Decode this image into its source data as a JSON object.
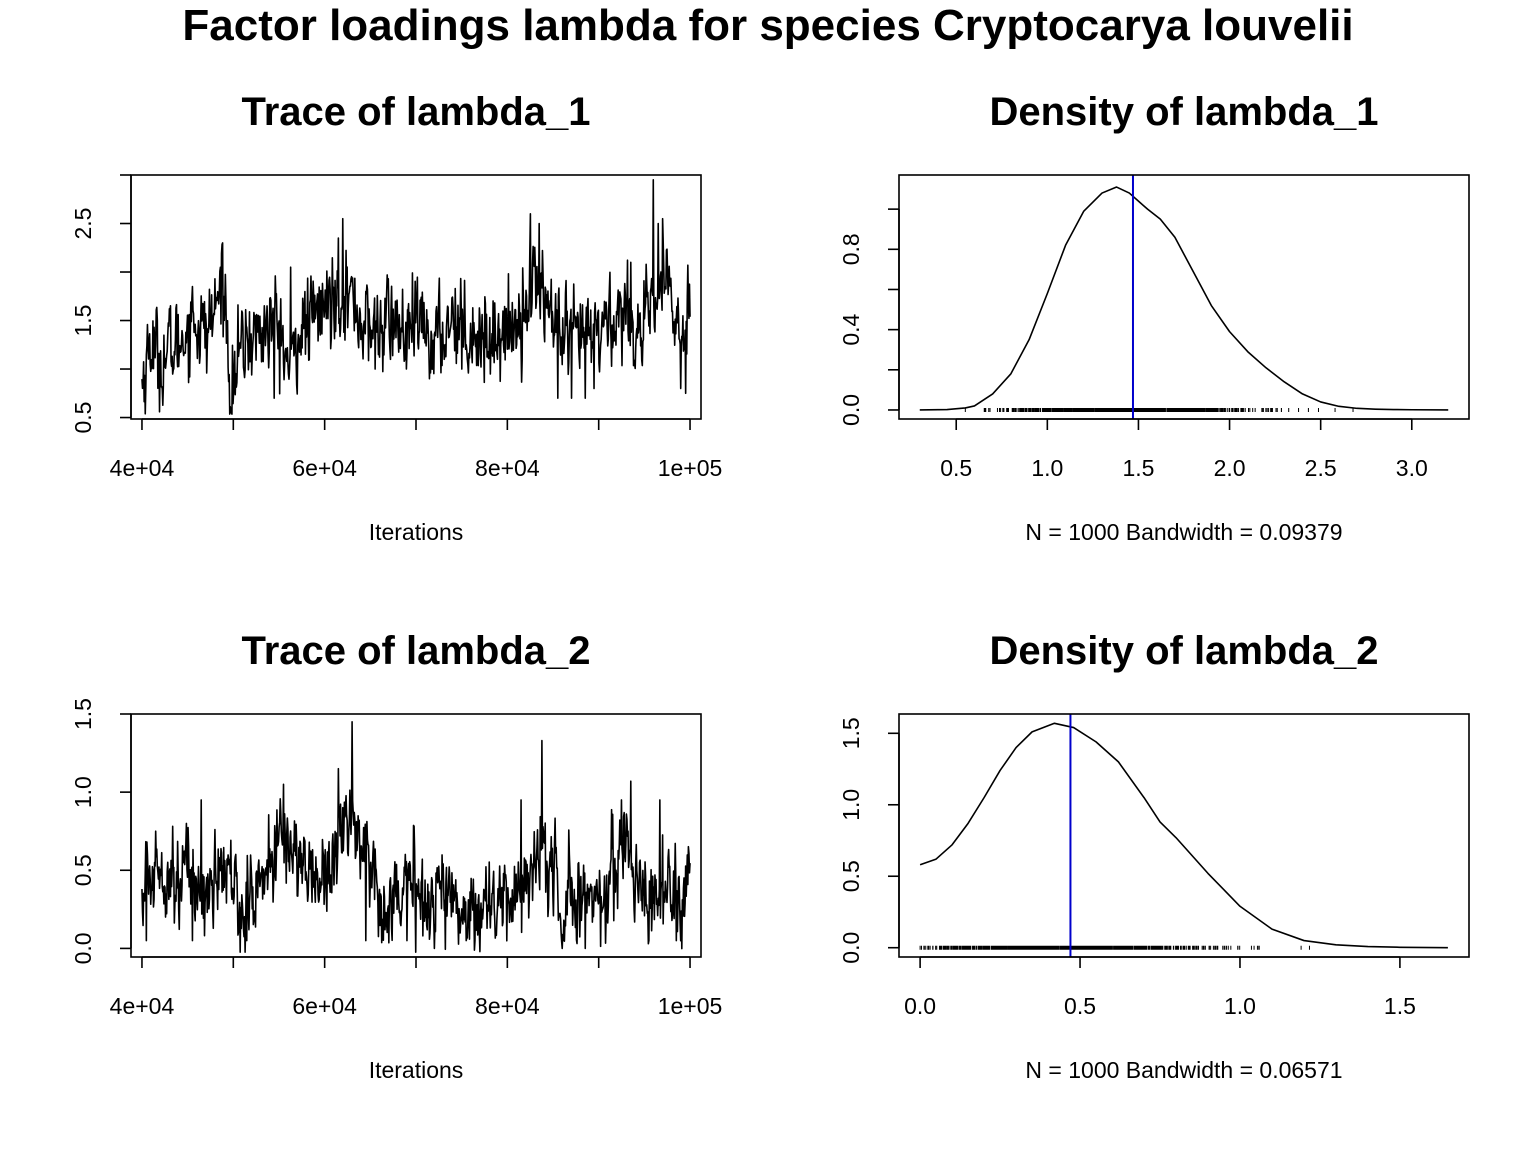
{
  "figure": {
    "title": "Factor loadings lambda for species  Cryptocarya louvelii"
  },
  "chart_data": [
    {
      "id": "trace1",
      "type": "line",
      "title": "Trace of lambda_1",
      "xlabel": "Iterations",
      "ylabel": "",
      "xlim": [
        38800,
        101200
      ],
      "ylim": [
        0.485,
        3.0
      ],
      "xticks": [
        40000,
        50000,
        60000,
        70000,
        80000,
        90000,
        100000
      ],
      "xtick_labels": [
        "4e+04",
        "",
        "6e+04",
        "",
        "8e+04",
        "",
        "1e+05"
      ],
      "yticks": [
        0.5,
        1.0,
        1.5,
        2.0,
        2.5,
        3.0
      ],
      "ytick_labels": [
        "0.5",
        "",
        "1.5",
        "",
        "2.5",
        ""
      ],
      "x_start": 40000,
      "x_end": 100000,
      "n": 1000,
      "series": [
        {
          "color": "#000000",
          "keyframes": [
            [
              40000,
              0.85
            ],
            [
              41000,
              1.3
            ],
            [
              42000,
              1.05
            ],
            [
              43000,
              1.2
            ],
            [
              44000,
              1.25
            ],
            [
              45000,
              1.45
            ],
            [
              46000,
              1.5
            ],
            [
              47000,
              1.35
            ],
            [
              48000,
              1.6
            ],
            [
              48900,
              1.95
            ],
            [
              49800,
              0.75
            ],
            [
              50500,
              1.1
            ],
            [
              51500,
              1.3
            ],
            [
              52500,
              1.35
            ],
            [
              53500,
              1.4
            ],
            [
              54500,
              1.5
            ],
            [
              55500,
              1.25
            ],
            [
              56300,
              0.9
            ],
            [
              57000,
              1.35
            ],
            [
              58000,
              1.45
            ],
            [
              59000,
              1.55
            ],
            [
              60000,
              1.65
            ],
            [
              61000,
              1.75
            ],
            [
              62000,
              1.85
            ],
            [
              63000,
              1.7
            ],
            [
              64000,
              1.5
            ],
            [
              65000,
              1.4
            ],
            [
              66000,
              1.45
            ],
            [
              67000,
              1.5
            ],
            [
              68000,
              1.45
            ],
            [
              69000,
              1.3
            ],
            [
              70000,
              1.45
            ],
            [
              71000,
              1.4
            ],
            [
              72000,
              1.3
            ],
            [
              73000,
              1.35
            ],
            [
              74000,
              1.6
            ],
            [
              75000,
              1.45
            ],
            [
              76000,
              1.4
            ],
            [
              77000,
              1.35
            ],
            [
              78000,
              1.3
            ],
            [
              79000,
              1.4
            ],
            [
              80000,
              1.35
            ],
            [
              81000,
              1.5
            ],
            [
              82000,
              1.7
            ],
            [
              83000,
              1.9
            ],
            [
              84000,
              1.8
            ],
            [
              85000,
              1.5
            ],
            [
              86000,
              1.3
            ],
            [
              87000,
              1.25
            ],
            [
              88000,
              1.35
            ],
            [
              89000,
              1.3
            ],
            [
              90000,
              1.4
            ],
            [
              91000,
              1.5
            ],
            [
              92000,
              1.55
            ],
            [
              93000,
              1.6
            ],
            [
              94000,
              1.45
            ],
            [
              95000,
              1.35
            ],
            [
              96000,
              1.6
            ],
            [
              97000,
              1.9
            ],
            [
              98000,
              1.7
            ],
            [
              99000,
              1.25
            ],
            [
              100000,
              1.8
            ]
          ],
          "spikes": [
            [
              45500,
              1.85
            ],
            [
              48800,
              2.3
            ],
            [
              49800,
              0.55
            ],
            [
              54500,
              0.7
            ],
            [
              56300,
              2.05
            ],
            [
              61500,
              2.35
            ],
            [
              62000,
              2.55
            ],
            [
              65500,
              1.0
            ],
            [
              71500,
              0.9
            ],
            [
              75000,
              1.0
            ],
            [
              82500,
              2.6
            ],
            [
              83500,
              2.5
            ],
            [
              85500,
              0.7
            ],
            [
              87000,
              0.7
            ],
            [
              88500,
              0.7
            ],
            [
              89500,
              0.8
            ],
            [
              93500,
              2.1
            ],
            [
              96000,
              2.95
            ],
            [
              96500,
              2.5
            ],
            [
              97000,
              2.55
            ],
            [
              99000,
              0.8
            ],
            [
              99500,
              0.75
            ]
          ]
        }
      ]
    },
    {
      "id": "density1",
      "type": "line",
      "title": "Density of lambda_1",
      "xlabel": "N = 1000   Bandwidth = 0.09379",
      "ylabel": "",
      "xlim": [
        0.186,
        3.314
      ],
      "ylim": [
        -0.045,
        1.17
      ],
      "xticks": [
        0.5,
        1.0,
        1.5,
        2.0,
        2.5,
        3.0
      ],
      "xtick_labels": [
        "0.5",
        "1.0",
        "1.5",
        "2.0",
        "2.5",
        "3.0"
      ],
      "yticks": [
        0.0,
        0.2,
        0.4,
        0.6,
        0.8,
        1.0
      ],
      "ytick_labels": [
        "0.0",
        "",
        "0.4",
        "",
        "0.8",
        ""
      ],
      "mean_line": {
        "x": 1.47,
        "color": "#0000cc"
      },
      "rug": {
        "center": 1.47,
        "sd": 0.33,
        "count": 1000,
        "min": 0.55,
        "max": 2.95
      },
      "series": [
        {
          "color": "#000000",
          "points": [
            [
              0.3,
              0.0
            ],
            [
              0.45,
              0.002
            ],
            [
              0.55,
              0.01
            ],
            [
              0.6,
              0.02
            ],
            [
              0.7,
              0.08
            ],
            [
              0.8,
              0.18
            ],
            [
              0.9,
              0.35
            ],
            [
              1.0,
              0.58
            ],
            [
              1.1,
              0.82
            ],
            [
              1.2,
              0.99
            ],
            [
              1.3,
              1.08
            ],
            [
              1.38,
              1.11
            ],
            [
              1.45,
              1.08
            ],
            [
              1.5,
              1.04
            ],
            [
              1.55,
              1.0
            ],
            [
              1.62,
              0.95
            ],
            [
              1.7,
              0.86
            ],
            [
              1.8,
              0.69
            ],
            [
              1.9,
              0.52
            ],
            [
              2.0,
              0.39
            ],
            [
              2.1,
              0.29
            ],
            [
              2.2,
              0.21
            ],
            [
              2.3,
              0.14
            ],
            [
              2.4,
              0.08
            ],
            [
              2.5,
              0.04
            ],
            [
              2.6,
              0.018
            ],
            [
              2.7,
              0.008
            ],
            [
              2.8,
              0.004
            ],
            [
              2.9,
              0.002
            ],
            [
              3.0,
              0.001
            ],
            [
              3.2,
              0.0
            ]
          ]
        }
      ]
    },
    {
      "id": "trace2",
      "type": "line",
      "title": "Trace of lambda_2",
      "xlabel": "Iterations",
      "ylabel": "",
      "xlim": [
        38800,
        101200
      ],
      "ylim": [
        -0.055,
        1.5
      ],
      "xticks": [
        40000,
        50000,
        60000,
        70000,
        80000,
        90000,
        100000
      ],
      "xtick_labels": [
        "4e+04",
        "",
        "6e+04",
        "",
        "8e+04",
        "",
        "1e+05"
      ],
      "yticks": [
        0.0,
        0.5,
        1.0,
        1.5
      ],
      "ytick_labels": [
        "0.0",
        "0.5",
        "1.0",
        "1.5"
      ],
      "x_start": 40000,
      "x_end": 100000,
      "n": 1000,
      "series": [
        {
          "color": "#000000",
          "keyframes": [
            [
              40000,
              0.35
            ],
            [
              41000,
              0.45
            ],
            [
              42000,
              0.55
            ],
            [
              43000,
              0.5
            ],
            [
              44000,
              0.45
            ],
            [
              45000,
              0.5
            ],
            [
              46000,
              0.4
            ],
            [
              47000,
              0.35
            ],
            [
              48000,
              0.45
            ],
            [
              49000,
              0.5
            ],
            [
              50000,
              0.4
            ],
            [
              51000,
              0.25
            ],
            [
              52000,
              0.3
            ],
            [
              53000,
              0.45
            ],
            [
              54000,
              0.55
            ],
            [
              55000,
              0.65
            ],
            [
              56000,
              0.7
            ],
            [
              57000,
              0.6
            ],
            [
              58000,
              0.5
            ],
            [
              59000,
              0.45
            ],
            [
              60000,
              0.5
            ],
            [
              61000,
              0.6
            ],
            [
              62000,
              0.75
            ],
            [
              63000,
              0.85
            ],
            [
              64000,
              0.7
            ],
            [
              65000,
              0.5
            ],
            [
              66000,
              0.35
            ],
            [
              67000,
              0.3
            ],
            [
              68000,
              0.35
            ],
            [
              69000,
              0.4
            ],
            [
              70000,
              0.35
            ],
            [
              71000,
              0.3
            ],
            [
              72000,
              0.35
            ],
            [
              73000,
              0.4
            ],
            [
              74000,
              0.3
            ],
            [
              75000,
              0.25
            ],
            [
              76000,
              0.25
            ],
            [
              77000,
              0.3
            ],
            [
              78000,
              0.3
            ],
            [
              79000,
              0.25
            ],
            [
              80000,
              0.3
            ],
            [
              81000,
              0.35
            ],
            [
              82000,
              0.45
            ],
            [
              83000,
              0.55
            ],
            [
              84000,
              0.6
            ],
            [
              85000,
              0.45
            ],
            [
              86000,
              0.35
            ],
            [
              87000,
              0.3
            ],
            [
              88000,
              0.35
            ],
            [
              89000,
              0.3
            ],
            [
              90000,
              0.35
            ],
            [
              91000,
              0.4
            ],
            [
              92000,
              0.55
            ],
            [
              93000,
              0.65
            ],
            [
              94000,
              0.55
            ],
            [
              95000,
              0.35
            ],
            [
              96000,
              0.3
            ],
            [
              97000,
              0.45
            ],
            [
              98000,
              0.4
            ],
            [
              99000,
              0.2
            ],
            [
              100000,
              0.35
            ]
          ],
          "spikes": [
            [
              40500,
              0.05
            ],
            [
              41500,
              0.75
            ],
            [
              45500,
              0.05
            ],
            [
              46500,
              0.95
            ],
            [
              51500,
              0.05
            ],
            [
              55500,
              1.05
            ],
            [
              61500,
              1.15
            ],
            [
              63000,
              1.45
            ],
            [
              64500,
              0.05
            ],
            [
              69000,
              0.05
            ],
            [
              72000,
              0.0
            ],
            [
              75500,
              0.05
            ],
            [
              81500,
              0.95
            ],
            [
              83800,
              1.33
            ],
            [
              86000,
              0.0
            ],
            [
              88500,
              0.0
            ],
            [
              92500,
              0.95
            ],
            [
              93500,
              1.07
            ],
            [
              95500,
              0.05
            ],
            [
              96700,
              0.95
            ],
            [
              98500,
              0.05
            ]
          ]
        }
      ]
    },
    {
      "id": "density2",
      "type": "line",
      "title": "Density of lambda_2",
      "xlabel": "N = 1000   Bandwidth = 0.06571",
      "ylabel": "",
      "xlim": [
        -0.066,
        1.716
      ],
      "ylim": [
        -0.065,
        1.635
      ],
      "xticks": [
        0.0,
        0.5,
        1.0,
        1.5
      ],
      "xtick_labels": [
        "0.0",
        "0.5",
        "1.0",
        "1.5"
      ],
      "yticks": [
        0.0,
        0.5,
        1.0,
        1.5
      ],
      "ytick_labels": [
        "0.0",
        "0.5",
        "1.0",
        "1.5"
      ],
      "mean_line": {
        "x": 0.47,
        "color": "#0000cc"
      },
      "rug": {
        "center": 0.45,
        "sd": 0.24,
        "count": 1000,
        "min": 0.0,
        "max": 1.45
      },
      "series": [
        {
          "color": "#000000",
          "points": [
            [
              0.0,
              0.58
            ],
            [
              0.05,
              0.62
            ],
            [
              0.1,
              0.72
            ],
            [
              0.15,
              0.87
            ],
            [
              0.2,
              1.05
            ],
            [
              0.25,
              1.24
            ],
            [
              0.3,
              1.4
            ],
            [
              0.35,
              1.51
            ],
            [
              0.42,
              1.57
            ],
            [
              0.48,
              1.54
            ],
            [
              0.55,
              1.44
            ],
            [
              0.62,
              1.3
            ],
            [
              0.7,
              1.05
            ],
            [
              0.75,
              0.88
            ],
            [
              0.8,
              0.77
            ],
            [
              0.9,
              0.52
            ],
            [
              1.0,
              0.29
            ],
            [
              1.1,
              0.13
            ],
            [
              1.2,
              0.05
            ],
            [
              1.3,
              0.02
            ],
            [
              1.4,
              0.008
            ],
            [
              1.5,
              0.003
            ],
            [
              1.65,
              0.0
            ]
          ]
        }
      ]
    }
  ]
}
